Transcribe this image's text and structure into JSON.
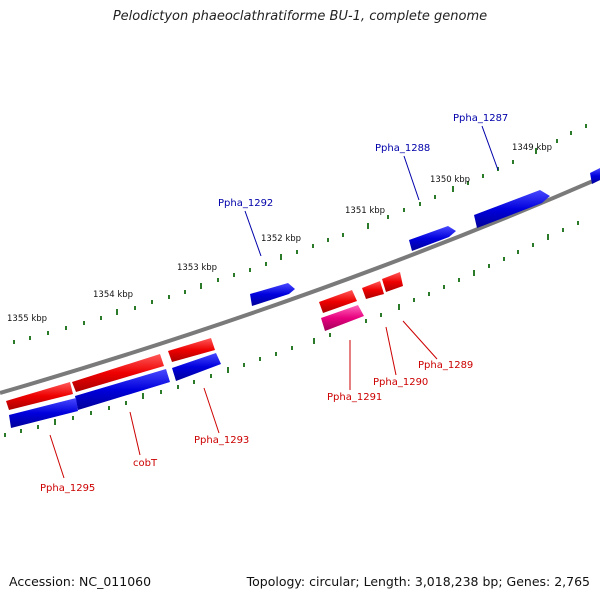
{
  "title": "Pelodictyon phaeoclathratiforme BU-1, complete genome",
  "footer": {
    "accession": "Accession: NC_011060",
    "summary": "Topology: circular; Length: 3,018,238 bp; Genes: 2,765"
  },
  "colors": {
    "backbone": "#7a7a7a",
    "tick": "#2a7a2a",
    "cds_forward": "#0000dd",
    "cds_reverse": "#ee0000",
    "rna": "#e8007e",
    "label_forward": "#0000aa",
    "label_reverse": "#cc0000"
  },
  "kbp_labels": [
    "1349 kbp",
    "1350 kbp",
    "1351 kbp",
    "1352 kbp",
    "1353 kbp",
    "1354 kbp",
    "1355 kbp"
  ],
  "gene_labels": [
    {
      "text": "Ppha_1287",
      "strand": "forward"
    },
    {
      "text": "Ppha_1288",
      "strand": "forward"
    },
    {
      "text": "Ppha_1292",
      "strand": "forward"
    },
    {
      "text": "Ppha_1289",
      "strand": "reverse"
    },
    {
      "text": "Ppha_1290",
      "strand": "reverse"
    },
    {
      "text": "Ppha_1291",
      "strand": "reverse"
    },
    {
      "text": "Ppha_1293",
      "strand": "reverse"
    },
    {
      "text": "cobT",
      "strand": "reverse"
    },
    {
      "text": "Ppha_1295",
      "strand": "reverse"
    }
  ]
}
